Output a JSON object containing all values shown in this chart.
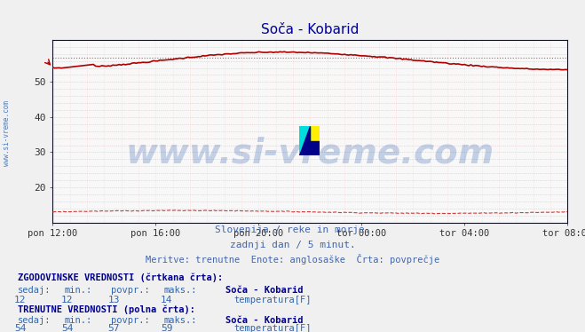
{
  "title": "Soča - Kobarid",
  "title_color": "#000099",
  "background_color": "#f0f0f0",
  "plot_bg_color": "#f8f8f8",
  "ylim": [
    10,
    62
  ],
  "yticks": [
    20,
    30,
    40,
    50
  ],
  "xticklabels": [
    "pon 12:00",
    "pon 16:00",
    "pon 20:00",
    "tor 00:00",
    "tor 04:00",
    "tor 08:00"
  ],
  "xtick_positions": [
    0,
    48,
    96,
    144,
    192,
    240
  ],
  "n_points": 241,
  "current_temp_start": 54.0,
  "current_temp_peak": 58.5,
  "current_temp_end": 53.5,
  "hist_avg": 13.0,
  "hist_max_line": 57.0,
  "solid_line_color": "#aa0000",
  "dashed_line_color": "#cc2222",
  "hline_color": "#cc4444",
  "axis_color": "#0000aa",
  "tick_color": "#333333",
  "grid_color_h": "#ddbbbb",
  "grid_color_v": "#ffcccc",
  "watermark_text": "www.si-vreme.com",
  "watermark_color": "#2255aa",
  "watermark_alpha": 0.25,
  "watermark_fontsize": 28,
  "footer_color": "#4466aa",
  "subtitle1": "Slovenija / reke in morje.",
  "subtitle2": "zadnji dan / 5 minut.",
  "subtitle3": "Meritve: trenutne  Enote: anglosaške  Črta: povprečje",
  "label_hist": "ZGODOVINSKE VREDNOSTI (črtkana črta):",
  "label_curr": "TRENUTNE VREDNOSTI (polna črta):",
  "col_headers": [
    "sedaj:",
    "min.:",
    "povpr.:",
    "maks.:"
  ],
  "hist_values": [
    "12",
    "12",
    "13",
    "14"
  ],
  "curr_values": [
    "54",
    "54",
    "57",
    "59"
  ],
  "station_name": "Soča - Kobarid",
  "measure_name": "temperatura[F]",
  "legend_color": "#cc0000",
  "side_label": "www.si-vreme.com",
  "side_label_color": "#3366aa"
}
